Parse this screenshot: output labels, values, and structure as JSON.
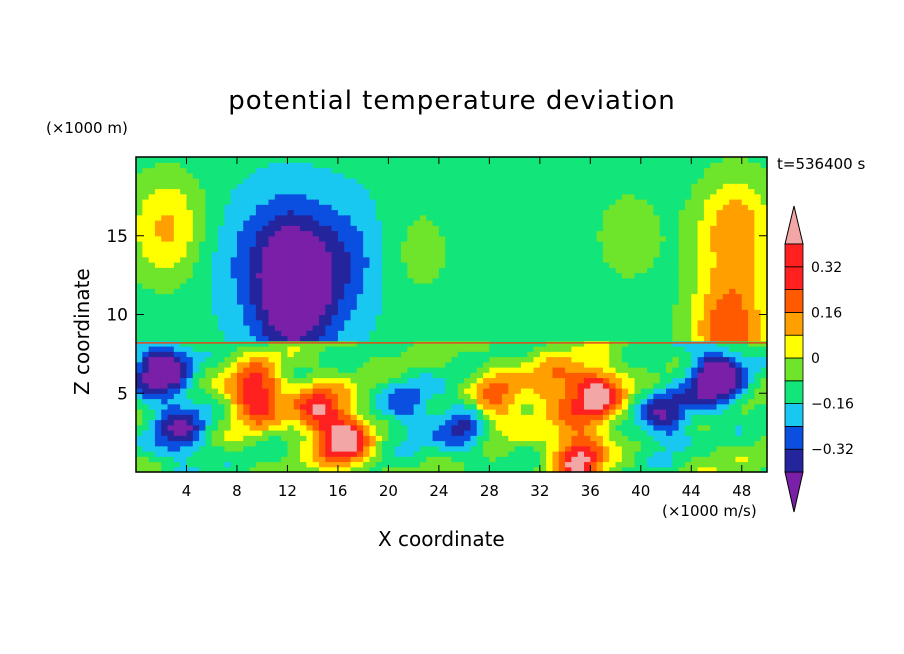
{
  "chart_data": {
    "type": "heatmap",
    "title": "potential temperature deviation",
    "xlabel": "X coordinate",
    "ylabel": "Z coordinate",
    "x_unit_label": "(×1000 m/s)",
    "z_unit_label": "(×1000 m)",
    "time_label": "t=536400 s",
    "xlim": [
      0,
      50
    ],
    "ylim": [
      0,
      20
    ],
    "x_ticks": [
      4,
      8,
      12,
      16,
      20,
      24,
      28,
      32,
      36,
      40,
      44,
      48
    ],
    "y_ticks": [
      5,
      10,
      15
    ],
    "colorbar": {
      "levels": [
        -0.4,
        -0.32,
        -0.24,
        -0.16,
        -0.08,
        0,
        0.08,
        0.16,
        0.24,
        0.32,
        0.4
      ],
      "labels": [
        "0.32",
        "0.16",
        "0",
        "−0.16",
        "−0.32"
      ],
      "label_values": [
        0.32,
        0.16,
        0,
        -0.16,
        -0.32
      ],
      "colors": [
        "#7a1fa8",
        "#24259c",
        "#0a4fe0",
        "#19c8f0",
        "#12e57a",
        "#6ee42a",
        "#ffff00",
        "#ffa000",
        "#ff5a00",
        "#ff2020",
        "#f2a6a6"
      ],
      "extend": "both"
    },
    "layers": {
      "upper_boundary_z": 8.2,
      "upper_background": -0.06,
      "upper_features": [
        {
          "x": 2.5,
          "z": 15.5,
          "v": 0.18
        },
        {
          "x": 7.0,
          "z": 14.0,
          "v": -0.12
        },
        {
          "x": 12.0,
          "z": 14.0,
          "v": -0.3
        },
        {
          "x": 12.5,
          "z": 10.5,
          "v": -0.38
        },
        {
          "x": 16.5,
          "z": 13.5,
          "v": -0.2
        },
        {
          "x": 22.5,
          "z": 14.0,
          "v": 0.03
        },
        {
          "x": 39.0,
          "z": 15.0,
          "v": 0.04
        },
        {
          "x": 47.5,
          "z": 15.5,
          "v": 0.22
        },
        {
          "x": 47.0,
          "z": 9.0,
          "v": 0.3
        }
      ],
      "lower_features": [
        {
          "x": 9.5,
          "z": 5.0,
          "v": 0.45
        },
        {
          "x": 14.5,
          "z": 4.0,
          "v": 0.32
        },
        {
          "x": 16.5,
          "z": 2.0,
          "v": 0.42
        },
        {
          "x": 2.0,
          "z": 6.5,
          "v": -0.45
        },
        {
          "x": 3.5,
          "z": 2.5,
          "v": -0.3
        },
        {
          "x": 21.5,
          "z": 4.0,
          "v": -0.2
        },
        {
          "x": 26.0,
          "z": 3.0,
          "v": -0.25
        },
        {
          "x": 28.5,
          "z": 4.5,
          "v": 0.3
        },
        {
          "x": 33.0,
          "z": 5.5,
          "v": 0.25
        },
        {
          "x": 36.5,
          "z": 5.0,
          "v": 0.45
        },
        {
          "x": 35.0,
          "z": 1.0,
          "v": 0.42
        },
        {
          "x": 42.0,
          "z": 3.5,
          "v": -0.3
        },
        {
          "x": 46.0,
          "z": 6.0,
          "v": -0.48
        },
        {
          "x": 45.0,
          "z": 1.0,
          "v": 0.05
        }
      ]
    }
  }
}
